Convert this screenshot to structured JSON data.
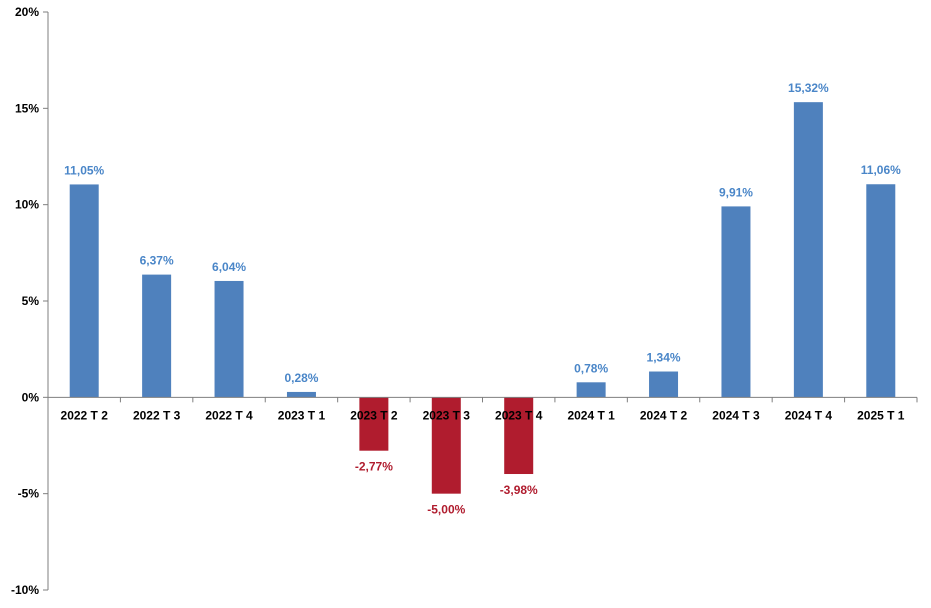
{
  "chart_data": {
    "type": "bar",
    "title": "",
    "xlabel": "",
    "ylabel": "",
    "ylim": [
      -10,
      20
    ],
    "yticks": [
      -10,
      -5,
      0,
      5,
      10,
      15,
      20
    ],
    "ytick_labels": [
      "-10%",
      "-5%",
      "0%",
      "5%",
      "10%",
      "15%",
      "20%"
    ],
    "grid": false,
    "legend": "none",
    "categories": [
      "2022 T 2",
      "2022 T 3",
      "2022 T 4",
      "2023 T 1",
      "2023 T 2",
      "2023 T 3",
      "2023 T 4",
      "2024 T 1",
      "2024 T 2",
      "2024 T 3",
      "2024 T 4",
      "2025 T 1"
    ],
    "values": [
      11.05,
      6.37,
      6.04,
      0.28,
      -2.77,
      -5.0,
      -3.98,
      0.78,
      1.34,
      9.91,
      15.32,
      11.06
    ],
    "data_labels": [
      "11,05%",
      "6,37%",
      "6,04%",
      "0,28%",
      "-2,77%",
      "-5,00%",
      "-3,98%",
      "0,78%",
      "1,34%",
      "9,91%",
      "15,32%",
      "11,06%"
    ],
    "colors": {
      "positive": "#4f81bd",
      "negative": "#b01c2e",
      "positive_label": "#4a86c8",
      "negative_label": "#b01c2e",
      "axis": "#7f7f7f"
    }
  }
}
